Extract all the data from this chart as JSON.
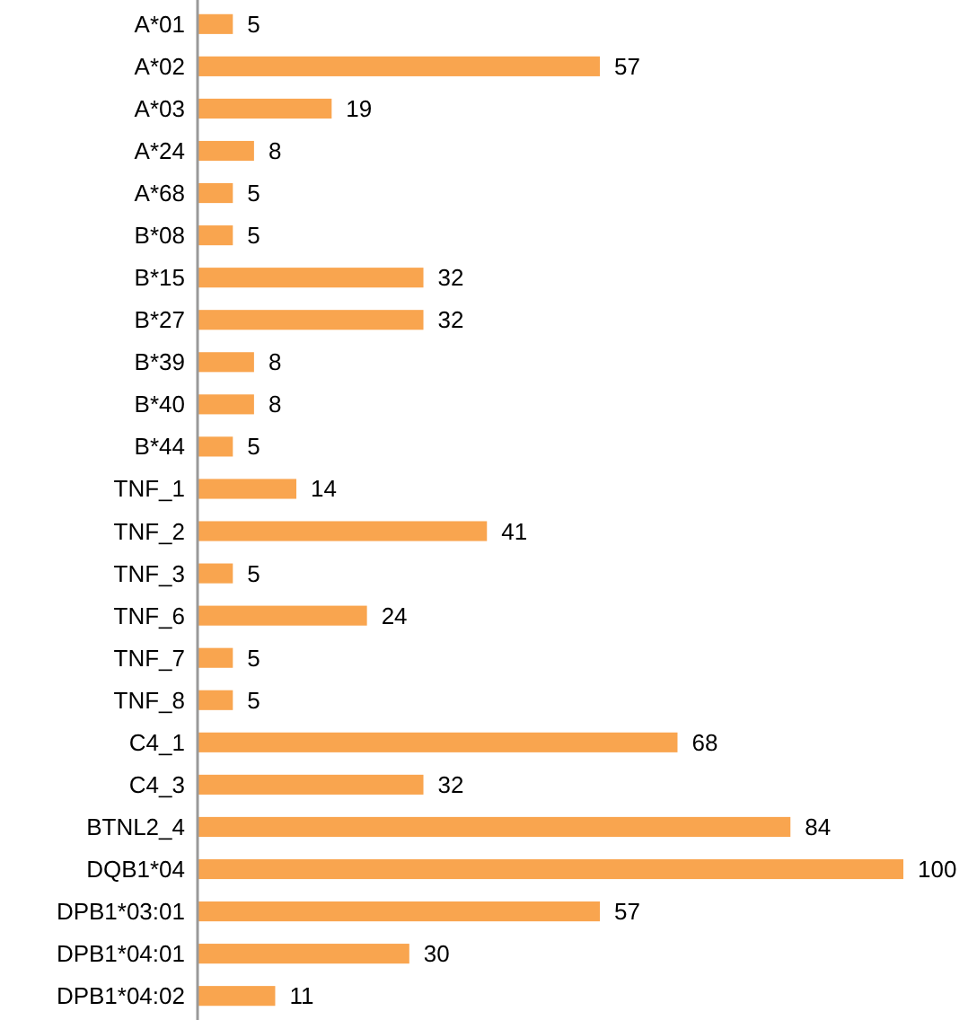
{
  "chart_data": {
    "type": "bar",
    "orientation": "horizontal",
    "data_labels": true,
    "categories": [
      "A*01",
      "A*02",
      "A*03",
      "A*24",
      "A*68",
      "B*08",
      "B*15",
      "B*27",
      "B*39",
      "B*40",
      "B*44",
      "TNF_1",
      "TNF_2",
      "TNF_3",
      "TNF_6",
      "TNF_7",
      "TNF_8",
      "C4_1",
      "C4_3",
      "BTNL2_4",
      "DQB1*04",
      "DPB1*03:01",
      "DPB1*04:01",
      "DPB1*04:02"
    ],
    "values": [
      5,
      57,
      19,
      8,
      5,
      5,
      32,
      32,
      8,
      8,
      5,
      14,
      41,
      5,
      24,
      5,
      5,
      68,
      32,
      84,
      100,
      57,
      30,
      11
    ],
    "color": "#f9a54f"
  }
}
